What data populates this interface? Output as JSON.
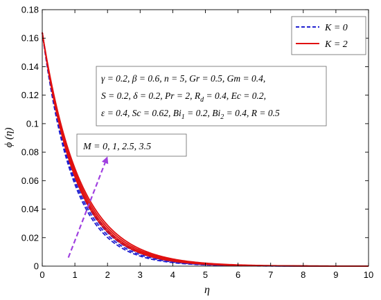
{
  "chart_data": {
    "type": "line",
    "xlabel": "η",
    "ylabel": "ϕ (η)",
    "xlim": [
      0,
      10
    ],
    "ylim": [
      0,
      0.18
    ],
    "xticks": [
      "0",
      "1",
      "2",
      "3",
      "4",
      "5",
      "6",
      "7",
      "8",
      "9",
      "10"
    ],
    "yticks": [
      "0",
      "0.02",
      "0.04",
      "0.06",
      "0.08",
      "0.1",
      "0.12",
      "0.14",
      "0.16",
      "0.18"
    ],
    "grid": false,
    "legend_position": "top-right",
    "legend": [
      {
        "label": "K = 0",
        "color": "#1f1fd0",
        "style": "dashed"
      },
      {
        "label": "K = 2",
        "color": "#e01010",
        "style": "solid"
      }
    ],
    "params_box": {
      "line1": "γ = 0.2, β = 0.6, n = 5, Gr = 0.5, Gm = 0.4,",
      "line2_a": "S = 0.2, δ = 0.2, Pr = 2, R",
      "line2_sub": "d",
      "line2_b": " = 0.4, Ec = 0.2,",
      "line3_a": "ε = 0.4, Sc = 0.62, Bi",
      "line3_sub1": "1",
      "line3_b": " = 0.2, Bi",
      "line3_sub2": "2",
      "line3_c": " = 0.4, R = 0.5"
    },
    "arrow_label": "M = 0, 1, 2.5, 3.5",
    "arrow": {
      "from": [
        0.8,
        0.006
      ],
      "to": [
        2.0,
        0.077
      ],
      "color": "#a040e0"
    },
    "series": [
      {
        "name": "K = 0",
        "color": "#1f1fd0",
        "style": "dashed",
        "M_values": [
          0,
          1,
          2.5,
          3.5
        ],
        "y0": 0.164,
        "decay_rates": [
          1.05,
          1.01,
          0.97,
          0.94
        ]
      },
      {
        "name": "K = 2",
        "color": "#e01010",
        "style": "solid",
        "M_values": [
          0,
          1,
          2.5,
          3.5
        ],
        "y0": 0.164,
        "decay_rates": [
          0.96,
          0.93,
          0.9,
          0.87
        ]
      }
    ]
  }
}
